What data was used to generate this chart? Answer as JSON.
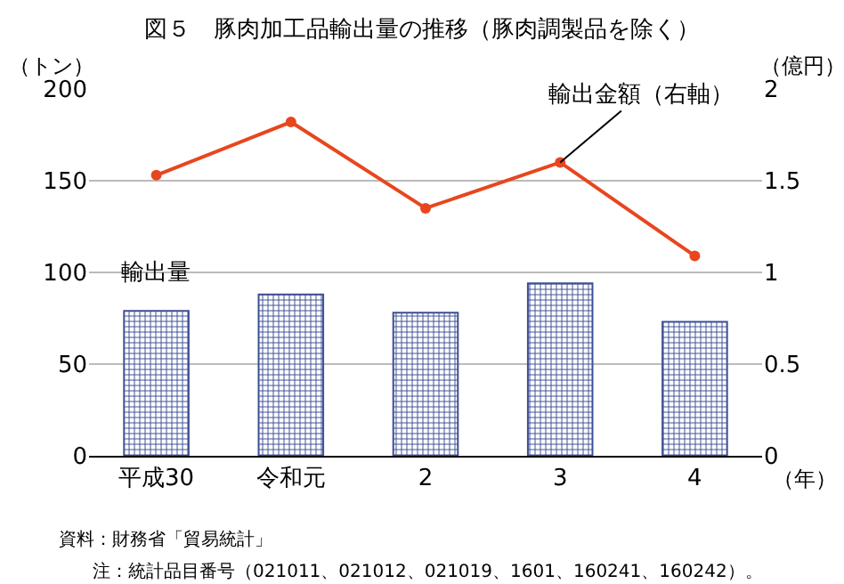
{
  "chart_data": {
    "type": "bar",
    "title": "図５　豚肉加工品輸出量の推移（豚肉調製品を除く）",
    "ylabel": "（トン）",
    "y2label": "（億円）",
    "xlabel": "（年）",
    "categories": [
      "平成30",
      "令和元",
      "2",
      "3",
      "4"
    ],
    "series": [
      {
        "name": "輸出量",
        "color": "#3d4f94",
        "values": [
          79,
          88,
          78,
          94,
          73
        ]
      },
      {
        "name": "輸出金額（右軸）",
        "type": "line",
        "axis": "y2",
        "color": "#e8461e",
        "values": [
          1.53,
          1.82,
          1.35,
          1.6,
          1.09
        ]
      }
    ],
    "ylim": [
      0,
      200
    ],
    "yticks": [
      0,
      50,
      100,
      150,
      200
    ],
    "y2lim": [
      0,
      2
    ],
    "y2ticks": [
      0,
      0.5,
      1,
      1.5,
      2
    ],
    "grid": "y",
    "legend": false,
    "marker": "circle",
    "line_style": "solid",
    "annotations": [
      "資料：財務省「貿易統計」",
      "注：統計品目番号（021011、021012、021019、1601、160241、160242）。"
    ]
  }
}
